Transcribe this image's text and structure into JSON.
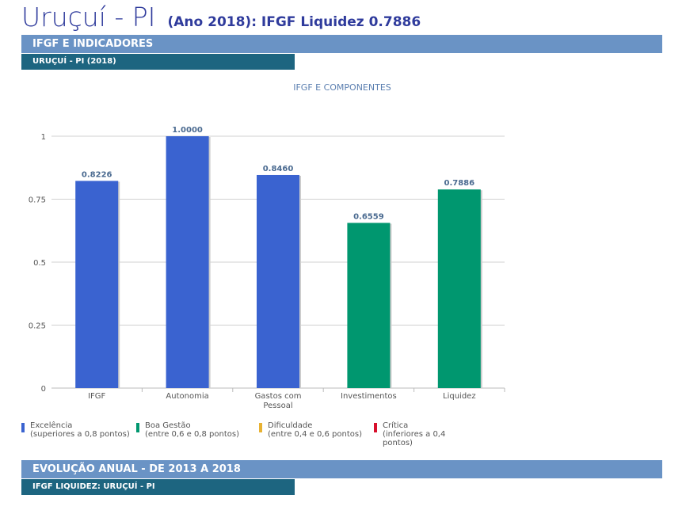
{
  "header": {
    "city": "Uruçuí - PI",
    "subtitle": "(Ano 2018): IFGF Liquidez  0.7886"
  },
  "section1": {
    "title": "IFGF E INDICADORES",
    "subtitle": "URUÇUÍ - PI (2018)"
  },
  "chart_data": {
    "type": "bar",
    "title": "IFGF E COMPONENTES",
    "categories": [
      "IFGF",
      "Autonomia",
      "Gastos com Pessoal",
      "Investimentos",
      "Liquidez"
    ],
    "values": [
      0.8226,
      1.0,
      0.846,
      0.6559,
      0.7886
    ],
    "value_labels": [
      "0.8226",
      "1.0000",
      "0.8460",
      "0.6559",
      "0.7886"
    ],
    "colors": [
      "#3a63d0",
      "#3a63d0",
      "#3a63d0",
      "#00976f",
      "#00976f"
    ],
    "ylim": [
      0,
      1
    ],
    "yticks": [
      "0",
      "0.25",
      "0.5",
      "0.75",
      "1"
    ],
    "grid": true
  },
  "legend": [
    {
      "label": "Excelência",
      "desc": "(superiores a 0,8 pontos)",
      "color": "#3a63d0"
    },
    {
      "label": "Boa Gestão",
      "desc": "(entre 0,6 e 0,8 pontos)",
      "color": "#00976f"
    },
    {
      "label": "Dificuldade",
      "desc": "(entre 0,4 e 0,6 pontos)",
      "color": "#e8b232"
    },
    {
      "label": "Crítica",
      "desc": "(inferiores a 0,4 pontos)",
      "color": "#d8102c"
    }
  ],
  "section2": {
    "title": "EVOLUÇÃO ANUAL - DE 2013 A 2018",
    "subtitle": "IFGF LIQUIDEZ: URUÇUÍ - PI"
  }
}
